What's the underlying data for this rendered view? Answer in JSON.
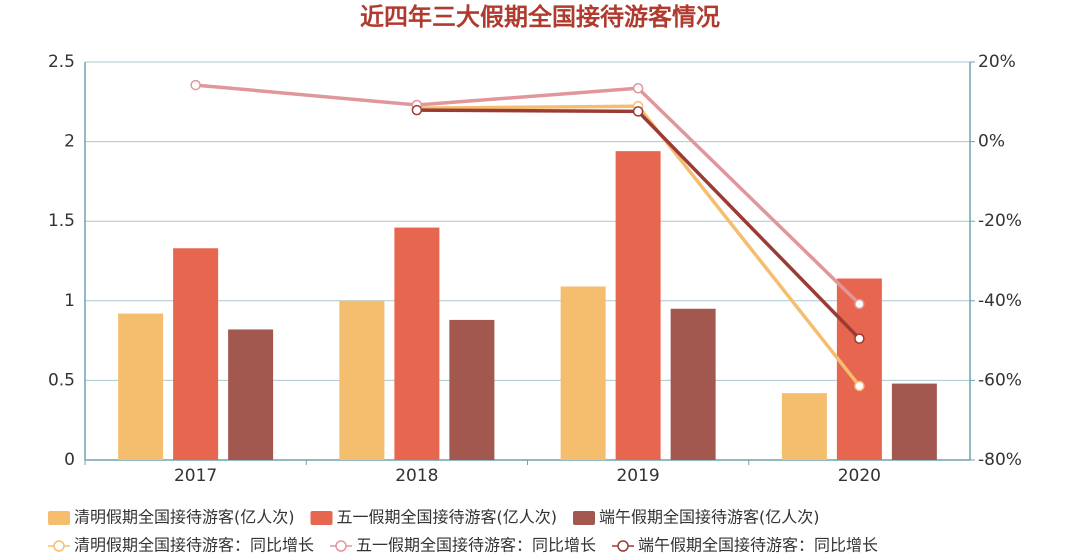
{
  "chart_data": {
    "type": "bar",
    "title": "近四年三大假期全国接待游客情况",
    "categories": [
      "2017",
      "2018",
      "2019",
      "2020"
    ],
    "ylim": [
      0,
      2.5
    ],
    "yticks": [
      0,
      0.5,
      1,
      1.5,
      2,
      2.5
    ],
    "y2lim": [
      -80,
      20
    ],
    "y2ticks": [
      {
        "value": -80,
        "label": "-80%"
      },
      {
        "value": -60,
        "label": "-60%"
      },
      {
        "value": -40,
        "label": "-40%"
      },
      {
        "value": -20,
        "label": "-20%"
      },
      {
        "value": 0,
        "label": "0%"
      },
      {
        "value": 20,
        "label": "20%"
      }
    ],
    "grid": true,
    "series": [
      {
        "name": "清明假期全国接待游客(亿人次)",
        "type": "bar",
        "color": "#f5be6e",
        "values": [
          0.92,
          1.0,
          1.09,
          0.42
        ]
      },
      {
        "name": "五一假期全国接待游客(亿人次)",
        "type": "bar",
        "color": "#e6664f",
        "values": [
          1.33,
          1.46,
          1.94,
          1.14
        ]
      },
      {
        "name": "端午假期全国接待游客(亿人次)",
        "type": "bar",
        "color": "#a3584f",
        "values": [
          0.82,
          0.88,
          0.95,
          0.48
        ]
      },
      {
        "name": "清明假期全国接待游客：同比增长",
        "type": "line",
        "axis": "y2",
        "color": "#f5be6e",
        "values": [
          null,
          8.4,
          8.9,
          -61.4
        ]
      },
      {
        "name": "五一假期全国接待游客：同比增长",
        "type": "line",
        "axis": "y2",
        "color": "#e0969b",
        "values": [
          14.2,
          9.2,
          13.4,
          -40.8
        ]
      },
      {
        "name": "端午假期全国接待游客：同比增长",
        "type": "line",
        "axis": "y2",
        "color": "#9b3b35",
        "values": [
          null,
          7.9,
          7.6,
          -49.5
        ]
      }
    ]
  }
}
